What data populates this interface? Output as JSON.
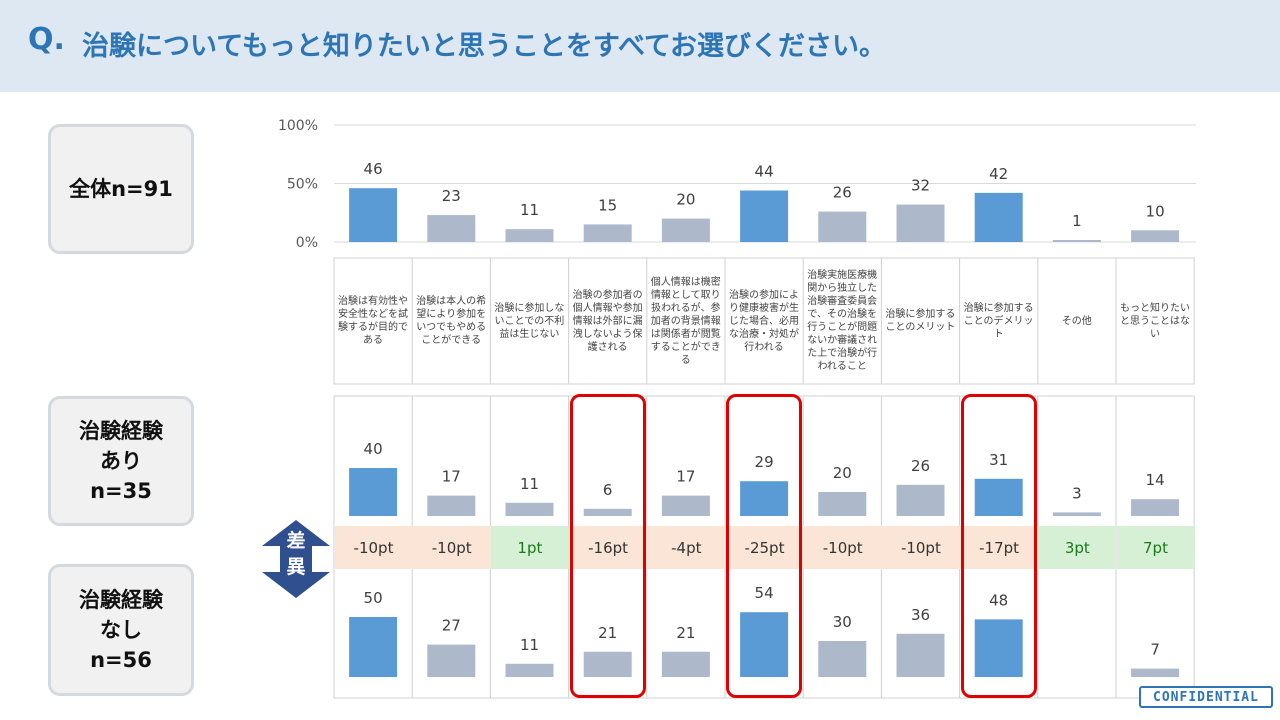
{
  "header": {
    "q_label": "Q.",
    "question": "治験についてもっと知りたいと思うことをすべてお選びください。"
  },
  "groups": {
    "all": {
      "line1": "全体n=91"
    },
    "yes": {
      "line1": "治験経験",
      "line2": "あり",
      "line3": "n=35"
    },
    "no": {
      "line1": "治験経験",
      "line2": "なし",
      "line3": "n=56"
    }
  },
  "diff_label": {
    "char1": "差",
    "char2": "異"
  },
  "confidential": "CONFIDENTIAL",
  "colors": {
    "highlight_bar": "#5b9bd5",
    "normal_bar": "#adb9ca",
    "box_highlight": "#e00000",
    "diff_negative_bg": "#fbe5d6",
    "diff_positive_bg": "#d6f0d6"
  },
  "chart_data": {
    "type": "bar",
    "ylim": [
      0,
      100
    ],
    "y_ticks": [
      "100%",
      "50%",
      "0%"
    ],
    "categories": [
      "治験は有効性や安全性などを試験するが目的である",
      "治験は本人の希望により参加をいつでもやめることができる",
      "治験に参加しないことでの不利益は生じない",
      "治験の参加者の個人情報や参加情報は外部に漏洩しないよう保護される",
      "個人情報は機密情報として取り扱われるが、参加者の背景情報は関係者が閲覧することができる",
      "治験の参加により健康被害が生じた場合、必用な治療・対処が行われる",
      "治験実施医療機関から独立した治験審査委員会で、その治験を行うことが問題ないか審議された上で治験が行われること",
      "治験に参加することのメリット",
      "治験に参加することのデメリット",
      "その他",
      "もっと知りたいと思うことはない"
    ],
    "series": [
      {
        "name": "全体n=91",
        "values": [
          46,
          23,
          11,
          15,
          20,
          44,
          26,
          32,
          42,
          1,
          10
        ],
        "highlighted": [
          true,
          false,
          false,
          false,
          false,
          true,
          false,
          false,
          true,
          false,
          false
        ]
      },
      {
        "name": "治験経験あり n=35",
        "values": [
          40,
          17,
          11,
          6,
          17,
          29,
          20,
          26,
          31,
          3,
          14
        ],
        "highlighted": [
          true,
          false,
          false,
          false,
          false,
          true,
          false,
          false,
          true,
          false,
          false
        ]
      },
      {
        "name": "治験経験なし n=56",
        "values": [
          50,
          27,
          11,
          21,
          21,
          54,
          30,
          36,
          48,
          null,
          7
        ],
        "highlighted": [
          true,
          false,
          false,
          false,
          false,
          true,
          false,
          false,
          true,
          false,
          false
        ]
      }
    ],
    "differences": [
      "-10pt",
      "-10pt",
      "1pt",
      "-16pt",
      "-4pt",
      "-25pt",
      "-10pt",
      "-10pt",
      "-17pt",
      "3pt",
      "7pt"
    ],
    "difference_sign": [
      "neg",
      "neg",
      "pos",
      "neg",
      "neg",
      "neg",
      "neg",
      "neg",
      "neg",
      "pos",
      "pos"
    ],
    "boxed_categories": [
      3,
      5,
      8
    ]
  }
}
